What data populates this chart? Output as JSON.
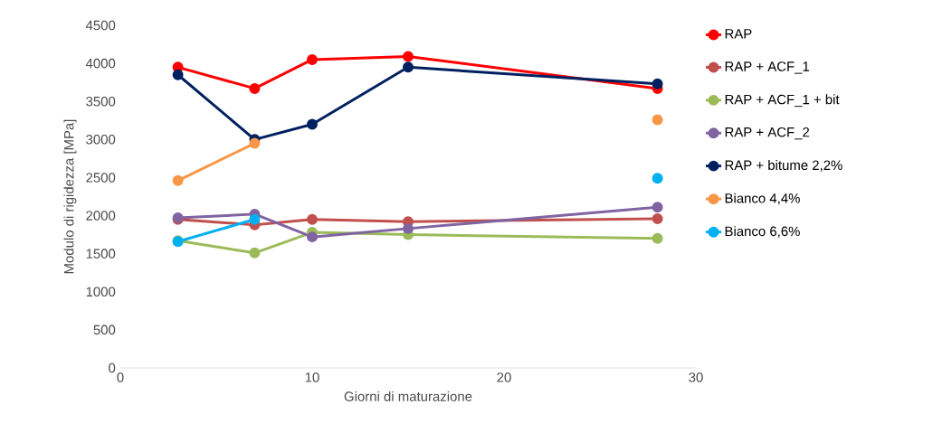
{
  "chart_data": {
    "type": "line",
    "xlabel": "Giorni di maturazione",
    "ylabel": "Modulo di rigidezza [MPa]",
    "x": [
      3,
      7,
      10,
      15,
      28
    ],
    "series": [
      {
        "name": "RAP",
        "color": "#ff0000",
        "values": [
          3950,
          3670,
          4050,
          4090,
          3670
        ]
      },
      {
        "name": "RAP + ACF_1",
        "color": "#c0504d",
        "values": [
          1950,
          1880,
          1950,
          1920,
          1960
        ]
      },
      {
        "name": "RAP + ACF_1 + bit",
        "color": "#9bbb59",
        "values": [
          1670,
          1510,
          1780,
          1750,
          1700
        ]
      },
      {
        "name": "RAP + ACF_2",
        "color": "#8064a2",
        "values": [
          1970,
          2020,
          1720,
          1830,
          2110
        ]
      },
      {
        "name": "RAP + bitume 2,2%",
        "color": "#002060",
        "values": [
          3850,
          3000,
          3200,
          3950,
          3730
        ]
      },
      {
        "name": "Bianco 4,4%",
        "color": "#f79646",
        "values": [
          2460,
          2950,
          null,
          null,
          3260
        ]
      },
      {
        "name": "Bianco 6,6%",
        "color": "#00b0f0",
        "values": [
          1660,
          1950,
          null,
          null,
          2490
        ]
      }
    ],
    "xlim": [
      0,
      30
    ],
    "xticks": [
      0,
      10,
      20,
      30
    ],
    "ylim": [
      0,
      4500
    ],
    "yticks": [
      0,
      500,
      1000,
      1500,
      2000,
      2500,
      3000,
      3500,
      4000,
      4500
    ],
    "grid": false,
    "legend": "right",
    "marker": "circle",
    "line_style": "solid"
  }
}
